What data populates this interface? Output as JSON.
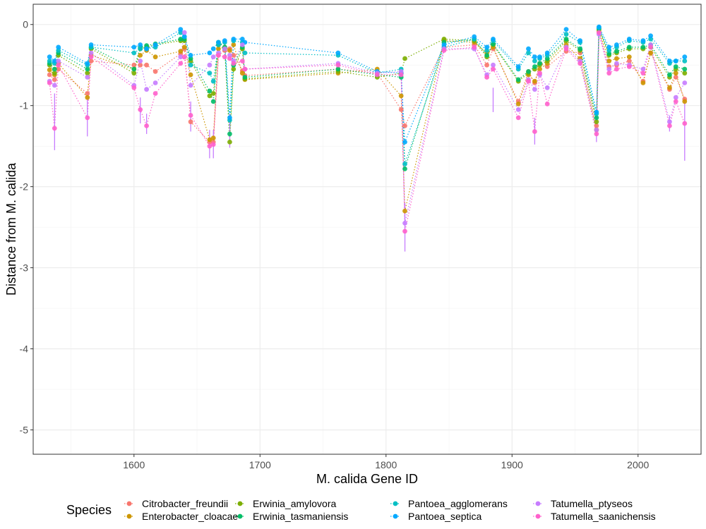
{
  "chart_data": {
    "type": "scatter",
    "title": "",
    "xlabel": "M. calida Gene ID",
    "ylabel": "Distance from M. calida",
    "xlim": [
      1520,
      2050
    ],
    "ylim": [
      -5.3,
      0.25
    ],
    "xticks": [
      1600,
      1700,
      1800,
      1900,
      2000
    ],
    "yticks": [
      0,
      -1,
      -2,
      -3,
      -4,
      -5
    ],
    "grid": true,
    "legend_title": "Species",
    "legend_position": "bottom",
    "x": [
      1533,
      1537,
      1540,
      1563,
      1566,
      1600,
      1605,
      1610,
      1617,
      1637,
      1640,
      1645,
      1660,
      1663,
      1667,
      1672,
      1676,
      1679,
      1686,
      1688,
      1762,
      1793,
      1812,
      1815,
      1846,
      1870,
      1880,
      1885,
      1905,
      1913,
      1918,
      1922,
      1928,
      1943,
      1954,
      1967,
      1969,
      1977,
      1983,
      1993,
      2004,
      2010,
      2025,
      2030,
      2037
    ],
    "series": [
      {
        "name": "Citrobacter_freundii",
        "color": "#F8766D",
        "values": [
          -0.62,
          -0.68,
          -0.55,
          -0.85,
          -0.45,
          -0.5,
          -0.5,
          -0.5,
          -0.58,
          -0.36,
          -0.3,
          -1.2,
          -1.45,
          -1.45,
          -0.38,
          -0.32,
          -0.3,
          -0.38,
          -0.57,
          -0.63,
          -0.55,
          -0.6,
          -1.05,
          -1.25,
          -0.28,
          -0.25,
          -0.5,
          -0.3,
          -0.95,
          -0.58,
          -0.72,
          -0.48,
          -0.52,
          -0.33,
          -0.35,
          -1.25,
          -0.1,
          -0.52,
          -0.5,
          -0.45,
          -0.7,
          -0.35,
          -0.8,
          -0.65,
          -0.92
        ]
      },
      {
        "name": "Enterobacter_cloacae",
        "color": "#CD9600",
        "values": [
          -0.56,
          -0.62,
          -0.48,
          -0.9,
          -0.38,
          -0.55,
          -0.38,
          -0.32,
          -0.4,
          -0.33,
          -0.28,
          -0.62,
          -1.42,
          -1.4,
          -0.3,
          -0.28,
          -0.32,
          -0.25,
          -0.6,
          -0.68,
          -0.6,
          -0.55,
          -0.88,
          -2.3,
          -0.2,
          -0.22,
          -0.35,
          -0.28,
          -0.98,
          -0.62,
          -0.7,
          -0.55,
          -0.48,
          -0.25,
          -0.42,
          -1.3,
          -0.08,
          -0.45,
          -0.42,
          -0.4,
          -0.72,
          -0.35,
          -0.78,
          -0.6,
          -0.95
        ]
      },
      {
        "name": "Erwinia_amylovora",
        "color": "#7CAE00",
        "values": [
          -0.5,
          -0.6,
          -0.38,
          -0.6,
          -0.3,
          -0.6,
          -0.3,
          -0.28,
          -0.25,
          -0.2,
          -0.2,
          -0.45,
          -0.88,
          -0.85,
          -0.25,
          -0.3,
          -1.45,
          -0.55,
          -0.3,
          -0.67,
          -0.58,
          -0.65,
          -0.6,
          -0.42,
          -0.18,
          -0.2,
          -0.4,
          -0.25,
          -0.7,
          -0.6,
          -0.55,
          -0.5,
          -0.45,
          -0.2,
          -0.32,
          -1.2,
          -0.06,
          -0.38,
          -0.35,
          -0.3,
          -0.3,
          -0.28,
          -0.65,
          -0.55,
          -0.6
        ]
      },
      {
        "name": "Erwinia_tasmaniensis",
        "color": "#00BE67",
        "values": [
          -0.48,
          -0.55,
          -0.35,
          -0.55,
          -0.28,
          -0.55,
          -0.28,
          -0.26,
          -0.24,
          -0.18,
          -0.18,
          -0.42,
          -0.82,
          -0.95,
          -0.22,
          -0.28,
          -1.35,
          -0.5,
          -0.28,
          -0.65,
          -0.55,
          -0.62,
          -0.65,
          -1.78,
          -0.22,
          -0.18,
          -0.38,
          -0.24,
          -0.68,
          -0.58,
          -0.52,
          -0.48,
          -0.42,
          -0.18,
          -0.3,
          -1.15,
          -0.05,
          -0.36,
          -0.33,
          -0.28,
          -0.28,
          -0.25,
          -0.62,
          -0.52,
          -0.55
        ]
      },
      {
        "name": "Pantoea_agglomerans",
        "color": "#00BFC4",
        "values": [
          -0.45,
          -0.48,
          -0.32,
          -0.5,
          -0.28,
          -0.35,
          -0.3,
          -0.3,
          -0.28,
          -0.1,
          -0.15,
          -0.5,
          -0.6,
          -0.7,
          -0.25,
          -0.22,
          -1.18,
          -0.2,
          -0.22,
          -0.35,
          -0.38,
          -0.6,
          -0.55,
          -1.72,
          -0.28,
          -0.18,
          -0.32,
          -0.2,
          -0.55,
          -0.35,
          -0.45,
          -0.42,
          -0.38,
          -0.12,
          -0.22,
          -1.1,
          -0.04,
          -0.32,
          -0.28,
          -0.2,
          -0.22,
          -0.18,
          -0.48,
          -0.45,
          -0.45
        ]
      },
      {
        "name": "Pantoea_septica",
        "color": "#00A9FF",
        "values": [
          -0.4,
          -0.45,
          -0.28,
          -0.48,
          -0.25,
          -0.28,
          -0.25,
          -0.3,
          -0.25,
          -0.06,
          -0.15,
          -0.38,
          -0.35,
          -0.3,
          -0.22,
          -0.2,
          -1.15,
          -0.18,
          -0.18,
          -0.22,
          -0.35,
          -0.58,
          -0.6,
          -1.45,
          -0.25,
          -0.15,
          -0.28,
          -0.18,
          -0.52,
          -0.3,
          -0.4,
          -0.4,
          -0.35,
          -0.06,
          -0.2,
          -1.08,
          -0.03,
          -0.28,
          -0.25,
          -0.18,
          -0.2,
          -0.14,
          -0.45,
          -0.45,
          -0.4
        ]
      },
      {
        "name": "Tatumella_ptyseos",
        "color": "#C77CFF",
        "values": [
          -0.7,
          -0.75,
          -0.45,
          -0.65,
          -0.35,
          -0.75,
          -0.45,
          -0.8,
          -0.72,
          -0.4,
          -0.1,
          -0.75,
          -0.5,
          -0.4,
          -0.35,
          -0.3,
          -0.38,
          -0.45,
          -0.25,
          -0.55,
          -0.48,
          -0.6,
          -0.58,
          -2.45,
          -0.3,
          -0.3,
          -0.62,
          -0.5,
          -1.05,
          -0.68,
          -0.8,
          -0.62,
          -0.78,
          -0.28,
          -0.45,
          -1.3,
          -0.12,
          -0.55,
          -0.48,
          -0.5,
          -0.55,
          -0.25,
          -1.2,
          -0.9,
          -0.72
        ]
      },
      {
        "name": "Tatumella_saanichensis",
        "color": "#FF61CC",
        "values": [
          -0.72,
          -1.28,
          -0.5,
          -1.15,
          -0.4,
          -0.78,
          -1.05,
          -1.25,
          -0.85,
          -0.48,
          -0.4,
          -1.12,
          -1.5,
          -1.48,
          -0.38,
          -0.4,
          -0.42,
          -0.48,
          -0.45,
          -0.55,
          -0.5,
          -0.62,
          -0.62,
          -2.55,
          -0.32,
          -0.28,
          -0.65,
          -0.55,
          -1.15,
          -0.7,
          -1.32,
          -0.6,
          -0.98,
          -0.3,
          -0.48,
          -1.35,
          -0.1,
          -0.6,
          -0.55,
          -0.52,
          -0.6,
          -0.28,
          -1.25,
          -0.95,
          -1.22
        ]
      }
    ],
    "error_bars": [
      {
        "x": 1537,
        "y_low": -1.55,
        "y_high": -0.85
      },
      {
        "x": 1563,
        "y_low": -1.38,
        "y_high": -0.9
      },
      {
        "x": 1605,
        "y_low": -1.22,
        "y_high": -0.9
      },
      {
        "x": 1610,
        "y_low": -1.35,
        "y_high": -1.1
      },
      {
        "x": 1645,
        "y_low": -1.32,
        "y_high": -0.95
      },
      {
        "x": 1660,
        "y_low": -1.65,
        "y_high": -1.3
      },
      {
        "x": 1663,
        "y_low": -1.65,
        "y_high": -1.3
      },
      {
        "x": 1676,
        "y_low": -1.52,
        "y_high": -1.1
      },
      {
        "x": 1815,
        "y_low": -2.8,
        "y_high": -2.2
      },
      {
        "x": 1885,
        "y_low": -1.08,
        "y_high": -0.78
      },
      {
        "x": 1918,
        "y_low": -1.48,
        "y_high": -1.15
      },
      {
        "x": 1967,
        "y_low": -1.45,
        "y_high": -1.05
      },
      {
        "x": 2025,
        "y_low": -1.32,
        "y_high": -1.12
      },
      {
        "x": 2037,
        "y_low": -1.68,
        "y_high": -0.9
      }
    ]
  }
}
